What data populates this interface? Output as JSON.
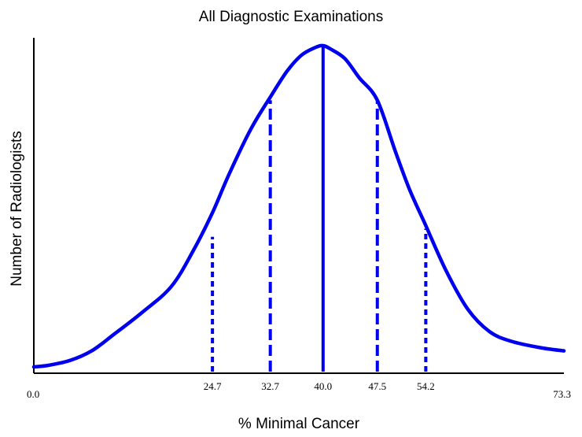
{
  "chart_data": {
    "type": "line",
    "title": "All Diagnostic Examinations",
    "xlabel": "% Minimal Cancer",
    "ylabel": "Number of Radiologists",
    "xlim": [
      0.0,
      73.3
    ],
    "ylim": [
      0,
      1
    ],
    "grid": false,
    "x_tick_labels": [
      "0.0",
      "73.3"
    ],
    "series": [
      {
        "x": [
          0.0,
          2,
          5,
          8,
          11,
          15,
          19,
          22,
          24.7,
          27,
          30,
          32.7,
          35,
          37,
          39,
          40.0,
          41,
          43,
          45,
          47.5,
          50,
          52,
          54.2,
          57,
          60,
          63,
          66,
          70,
          73.3
        ],
        "y": [
          0.0,
          0.005,
          0.02,
          0.05,
          0.1,
          0.17,
          0.25,
          0.36,
          0.48,
          0.6,
          0.74,
          0.84,
          0.92,
          0.97,
          0.995,
          1.0,
          0.99,
          0.96,
          0.9,
          0.83,
          0.67,
          0.55,
          0.44,
          0.3,
          0.18,
          0.11,
          0.08,
          0.06,
          0.05
        ]
      }
    ],
    "markers": [
      {
        "x": 24.7,
        "label": "24.7",
        "style": "dotted",
        "height": 0.405
      },
      {
        "x": 32.7,
        "label": "32.7",
        "style": "dashed",
        "height": 0.83
      },
      {
        "x": 40.0,
        "label": "40.0",
        "style": "solid",
        "height": 1.0
      },
      {
        "x": 47.5,
        "label": "47.5",
        "style": "dashed",
        "height": 0.83
      },
      {
        "x": 54.2,
        "label": "54.2",
        "style": "dotted",
        "height": 0.43
      }
    ],
    "line_color": "#0000ee",
    "axis_color": "#000000"
  }
}
